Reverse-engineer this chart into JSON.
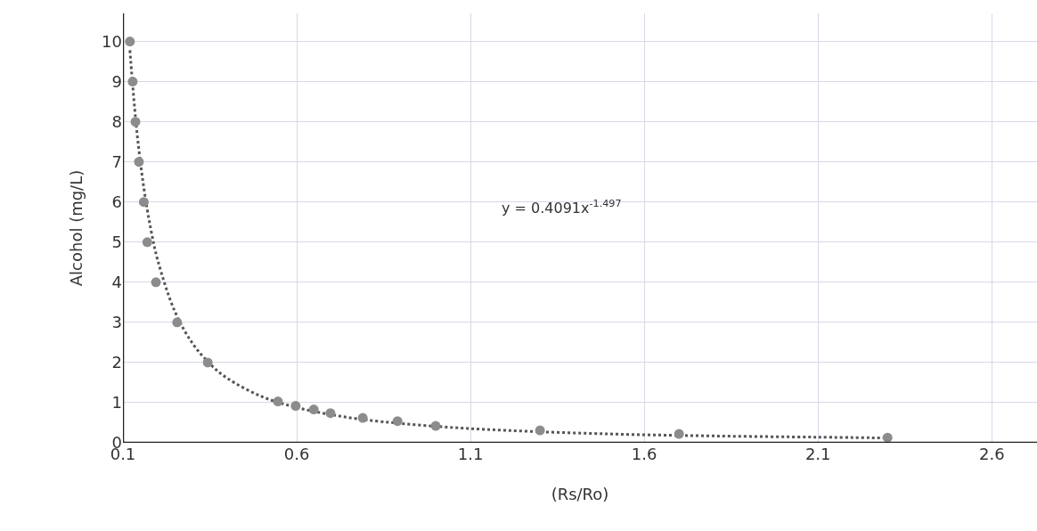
{
  "chart_data": {
    "type": "scatter",
    "xlabel": "(Rs/Ro)",
    "ylabel": "Alcohol (mg/L)",
    "xlim": [
      0.1,
      2.73
    ],
    "xticks": [
      0.1,
      0.6,
      1.1,
      1.6,
      2.1,
      2.6
    ],
    "ylim": [
      0,
      10.7
    ],
    "yticks": [
      0,
      1,
      2,
      3,
      4,
      5,
      6,
      7,
      8,
      9,
      10
    ],
    "grid": true,
    "annotations": [
      "y = 0.4091x$^{-1.497}$"
    ],
    "series": [
      {
        "color": "#8c8c8c",
        "marker": "circle",
        "x": [
          0.12,
          0.128,
          0.136,
          0.146,
          0.16,
          0.17,
          0.195,
          0.256,
          0.344,
          0.546,
          0.597,
          0.649,
          0.697,
          0.79,
          0.89,
          1.0,
          1.3,
          1.7,
          2.3
        ],
        "values": [
          10,
          9,
          8,
          7,
          6,
          5,
          4,
          3,
          2,
          1.03,
          0.92,
          0.83,
          0.74,
          0.62,
          0.54,
          0.42,
          0.31,
          0.22,
          0.13
        ]
      },
      {
        "type": "line",
        "color": "#555555",
        "marker": "none",
        "line_style": "dotted",
        "x": [
          0.12,
          0.14,
          0.16,
          0.18,
          0.2,
          0.25,
          0.3,
          0.35,
          0.4,
          0.5,
          0.6,
          0.7,
          0.8,
          1.0,
          1.2,
          1.5,
          1.8,
          2.1,
          2.3
        ],
        "values": [
          9.78,
          7.76,
          6.36,
          5.33,
          4.55,
          3.26,
          2.48,
          1.97,
          1.61,
          1.15,
          0.88,
          0.7,
          0.57,
          0.41,
          0.31,
          0.22,
          0.17,
          0.14,
          0.12
        ]
      }
    ]
  }
}
